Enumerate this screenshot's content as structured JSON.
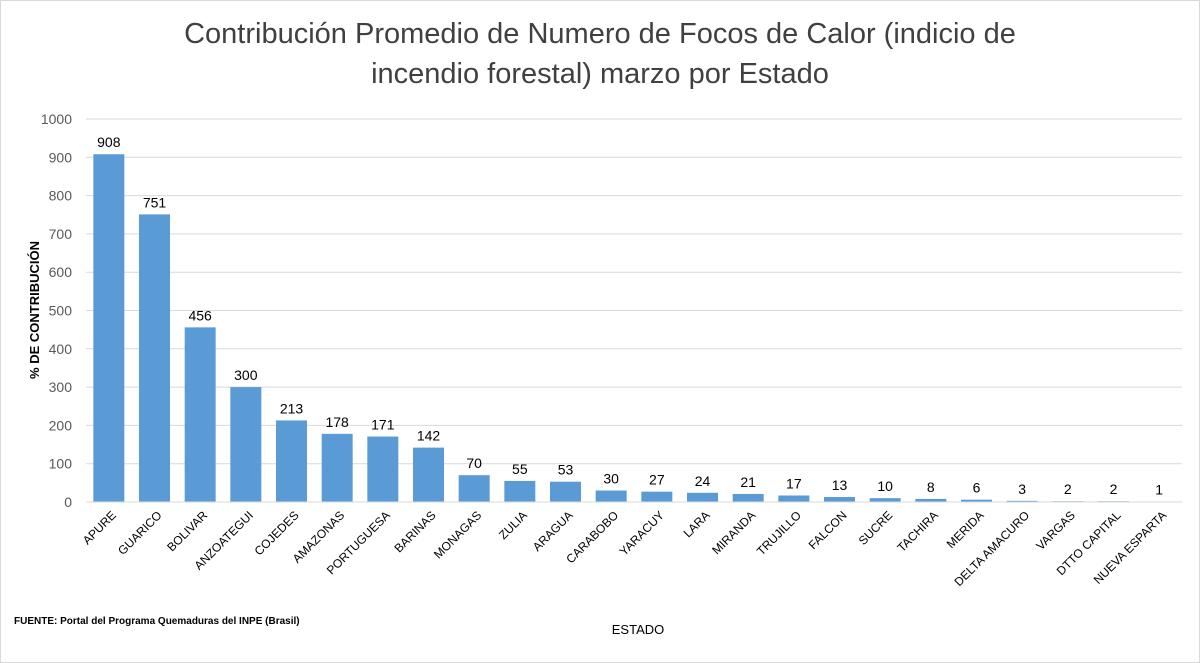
{
  "chart_data": {
    "type": "bar",
    "title": "Contribución Promedio de Numero de Focos de Calor (indicio de incendio forestal) marzo por Estado",
    "title_lines": [
      "Contribución Promedio de Numero de Focos de Calor (indicio de",
      "incendio forestal) marzo por Estado"
    ],
    "xlabel": "ESTADO",
    "ylabel": "% DE CONTRIBUCIÓN",
    "ylim": [
      0,
      1000
    ],
    "yticks": [
      0,
      100,
      200,
      300,
      400,
      500,
      600,
      700,
      800,
      900,
      1000
    ],
    "grid": true,
    "legend": "none",
    "bar_color": "#5b9bd5",
    "categories": [
      "APURE",
      "GUARICO",
      "BOLIVAR",
      "ANZOATEGUI",
      "COJEDES",
      "AMAZONAS",
      "PORTUGUESA",
      "BARINAS",
      "MONAGAS",
      "ZULIA",
      "ARAGUA",
      "CARABOBO",
      "YARACUY",
      "LARA",
      "MIRANDA",
      "TRUJILLO",
      "FALCON",
      "SUCRE",
      "TACHIRA",
      "MERIDA",
      "DELTA AMACURO",
      "VARGAS",
      "DTTO CAPITAL",
      "NUEVA ESPARTA"
    ],
    "values": [
      908,
      751,
      456,
      300,
      213,
      178,
      171,
      142,
      70,
      55,
      53,
      30,
      27,
      24,
      21,
      17,
      13,
      10,
      8,
      6,
      3,
      2,
      2,
      1
    ],
    "source": "FUENTE:  Portal del Programa Quemaduras del INPE (Brasil)"
  }
}
